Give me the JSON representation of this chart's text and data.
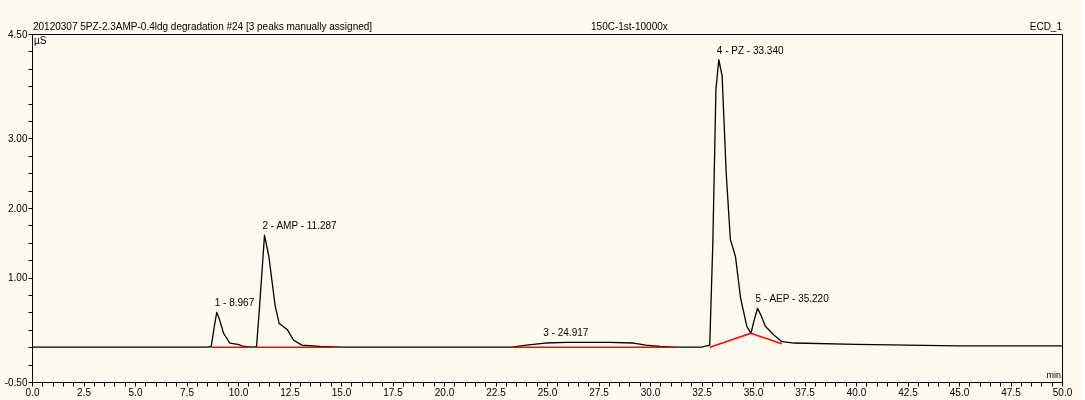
{
  "chart_data": {
    "type": "line",
    "title": "20120307 5PZ-2.3AMP-0.4ldg degradation #24 [3 peaks manually assigned]",
    "annotations": [
      "150C-1st-10000x",
      "ECD_1",
      {
        "text": "1 - 8.967",
        "x": 8.967,
        "y": 0.5
      },
      {
        "text": "2 - AMP - 11.287",
        "x": 11.287,
        "y": 1.61
      },
      {
        "text": "3 - 24.917",
        "x": 24.917,
        "y": 0.07
      },
      {
        "text": "4 - PZ - 33.340",
        "x": 33.34,
        "y": 4.13
      },
      {
        "text": "5 - AEP - 35.220",
        "x": 35.22,
        "y": 0.56
      }
    ],
    "xlabel": "min",
    "ylabel": "µS",
    "series": [
      {
        "color": "#000000",
        "x": [
          0,
          5,
          8.5,
          8.7,
          8.85,
          8.967,
          9.1,
          9.3,
          9.6,
          10.0,
          10.3,
          10.7,
          10.9,
          11.05,
          11.287,
          11.5,
          11.8,
          12.0,
          12.4,
          12.7,
          13.1,
          14,
          15,
          20,
          23.3,
          24.0,
          24.917,
          26,
          28,
          29.2,
          29.8,
          30.5,
          31.2,
          32.5,
          32.9,
          33.05,
          33.2,
          33.34,
          33.5,
          33.7,
          33.9,
          34.15,
          34.4,
          34.7,
          34.9,
          35.05,
          35.22,
          35.4,
          35.6,
          36.0,
          36.4,
          37,
          40,
          45,
          50
        ],
        "values": [
          0,
          0,
          0,
          0.01,
          0.3,
          0.5,
          0.4,
          0.2,
          0.06,
          0.04,
          0.01,
          0,
          0.01,
          0.6,
          1.61,
          1.3,
          0.6,
          0.34,
          0.25,
          0.1,
          0.03,
          0.01,
          0,
          0,
          0,
          0.03,
          0.06,
          0.07,
          0.07,
          0.06,
          0.03,
          0.01,
          0,
          0,
          0.03,
          1.5,
          3.7,
          4.13,
          3.9,
          2.5,
          1.55,
          1.3,
          0.7,
          0.3,
          0.2,
          0.38,
          0.56,
          0.45,
          0.3,
          0.18,
          0.08,
          0.06,
          0.04,
          0.02,
          0.02
        ]
      },
      {
        "color": "#ff0000",
        "x": [
          8.7,
          10.5,
          10.6,
          10.8,
          14.7,
          14.8,
          23.3,
          31.2,
          31.3,
          32.9,
          34.9,
          36.4
        ],
        "values": [
          0,
          0,
          null,
          0,
          0,
          null,
          0,
          0,
          null,
          0,
          0.2,
          0.05
        ]
      }
    ],
    "xlim": [
      0,
      50
    ],
    "ylim": [
      -0.5,
      4.5
    ],
    "xticks": [
      {
        "value": 0,
        "label": "0.0"
      },
      {
        "value": 0.5,
        "label": null
      },
      {
        "value": 1,
        "label": null
      },
      {
        "value": 1.5,
        "label": null
      },
      {
        "value": 2,
        "label": null
      },
      {
        "value": 2.5,
        "label": "2.5"
      },
      {
        "value": 3,
        "label": null
      },
      {
        "value": 3.5,
        "label": null
      },
      {
        "value": 4,
        "label": null
      },
      {
        "value": 4.5,
        "label": null
      },
      {
        "value": 5,
        "label": "5.0"
      },
      {
        "value": 5.5,
        "label": null
      },
      {
        "value": 6,
        "label": null
      },
      {
        "value": 6.5,
        "label": null
      },
      {
        "value": 7,
        "label": null
      },
      {
        "value": 7.5,
        "label": "7.5"
      },
      {
        "value": 8,
        "label": null
      },
      {
        "value": 8.5,
        "label": null
      },
      {
        "value": 9,
        "label": null
      },
      {
        "value": 9.5,
        "label": null
      },
      {
        "value": 10,
        "label": "10.0"
      },
      {
        "value": 10.5,
        "label": null
      },
      {
        "value": 11,
        "label": null
      },
      {
        "value": 11.5,
        "label": null
      },
      {
        "value": 12,
        "label": null
      },
      {
        "value": 12.5,
        "label": "12.5"
      },
      {
        "value": 13,
        "label": null
      },
      {
        "value": 13.5,
        "label": null
      },
      {
        "value": 14,
        "label": null
      },
      {
        "value": 14.5,
        "label": null
      },
      {
        "value": 15,
        "label": "15.0"
      },
      {
        "value": 15.5,
        "label": null
      },
      {
        "value": 16,
        "label": null
      },
      {
        "value": 16.5,
        "label": null
      },
      {
        "value": 17,
        "label": null
      },
      {
        "value": 17.5,
        "label": "17.5"
      },
      {
        "value": 18,
        "label": null
      },
      {
        "value": 18.5,
        "label": null
      },
      {
        "value": 19,
        "label": null
      },
      {
        "value": 19.5,
        "label": null
      },
      {
        "value": 20,
        "label": "20.0"
      },
      {
        "value": 20.5,
        "label": null
      },
      {
        "value": 21,
        "label": null
      },
      {
        "value": 21.5,
        "label": null
      },
      {
        "value": 22,
        "label": null
      },
      {
        "value": 22.5,
        "label": "22.5"
      },
      {
        "value": 23,
        "label": null
      },
      {
        "value": 23.5,
        "label": null
      },
      {
        "value": 24,
        "label": null
      },
      {
        "value": 24.5,
        "label": null
      },
      {
        "value": 25,
        "label": "25.0"
      },
      {
        "value": 25.5,
        "label": null
      },
      {
        "value": 26,
        "label": null
      },
      {
        "value": 26.5,
        "label": null
      },
      {
        "value": 27,
        "label": null
      },
      {
        "value": 27.5,
        "label": "27.5"
      },
      {
        "value": 28,
        "label": null
      },
      {
        "value": 28.5,
        "label": null
      },
      {
        "value": 29,
        "label": null
      },
      {
        "value": 29.5,
        "label": null
      },
      {
        "value": 30,
        "label": "30.0"
      },
      {
        "value": 30.5,
        "label": null
      },
      {
        "value": 31,
        "label": null
      },
      {
        "value": 31.5,
        "label": null
      },
      {
        "value": 32,
        "label": null
      },
      {
        "value": 32.5,
        "label": "32.5"
      },
      {
        "value": 33,
        "label": null
      },
      {
        "value": 33.5,
        "label": null
      },
      {
        "value": 34,
        "label": null
      },
      {
        "value": 34.5,
        "label": null
      },
      {
        "value": 35,
        "label": "35.0"
      },
      {
        "value": 35.5,
        "label": null
      },
      {
        "value": 36,
        "label": null
      },
      {
        "value": 36.5,
        "label": null
      },
      {
        "value": 37,
        "label": null
      },
      {
        "value": 37.5,
        "label": "37.5"
      },
      {
        "value": 38,
        "label": null
      },
      {
        "value": 38.5,
        "label": null
      },
      {
        "value": 39,
        "label": null
      },
      {
        "value": 39.5,
        "label": null
      },
      {
        "value": 40,
        "label": "40.0"
      },
      {
        "value": 40.5,
        "label": null
      },
      {
        "value": 41,
        "label": null
      },
      {
        "value": 41.5,
        "label": null
      },
      {
        "value": 42,
        "label": null
      },
      {
        "value": 42.5,
        "label": "42.5"
      },
      {
        "value": 43,
        "label": null
      },
      {
        "value": 43.5,
        "label": null
      },
      {
        "value": 44,
        "label": null
      },
      {
        "value": 44.5,
        "label": null
      },
      {
        "value": 45,
        "label": "45.0"
      },
      {
        "value": 45.5,
        "label": null
      },
      {
        "value": 46,
        "label": null
      },
      {
        "value": 46.5,
        "label": null
      },
      {
        "value": 47,
        "label": null
      },
      {
        "value": 47.5,
        "label": "47.5"
      },
      {
        "value": 48,
        "label": null
      },
      {
        "value": 48.5,
        "label": null
      },
      {
        "value": 49,
        "label": null
      },
      {
        "value": 49.5,
        "label": null
      },
      {
        "value": 50,
        "label": "50.0"
      }
    ],
    "yticks": [
      {
        "value": -0.5,
        "label": "-0.50"
      },
      {
        "value": -0.25,
        "label": null
      },
      {
        "value": 0,
        "label": null
      },
      {
        "value": 0.25,
        "label": null
      },
      {
        "value": 0.5,
        "label": null
      },
      {
        "value": 0.75,
        "label": null
      },
      {
        "value": 1,
        "label": "1.00"
      },
      {
        "value": 1.25,
        "label": null
      },
      {
        "value": 1.5,
        "label": null
      },
      {
        "value": 1.75,
        "label": null
      },
      {
        "value": 2,
        "label": "2.00"
      },
      {
        "value": 2.25,
        "label": null
      },
      {
        "value": 2.5,
        "label": null
      },
      {
        "value": 2.75,
        "label": null
      },
      {
        "value": 3,
        "label": "3.00"
      },
      {
        "value": 3.25,
        "label": null
      },
      {
        "value": 3.5,
        "label": null
      },
      {
        "value": 3.75,
        "label": null
      },
      {
        "value": 4,
        "label": null
      },
      {
        "value": 4.25,
        "label": null
      },
      {
        "value": 4.5,
        "label": "4.50"
      }
    ],
    "grid": false,
    "marker": "none",
    "line_style": "solid"
  }
}
